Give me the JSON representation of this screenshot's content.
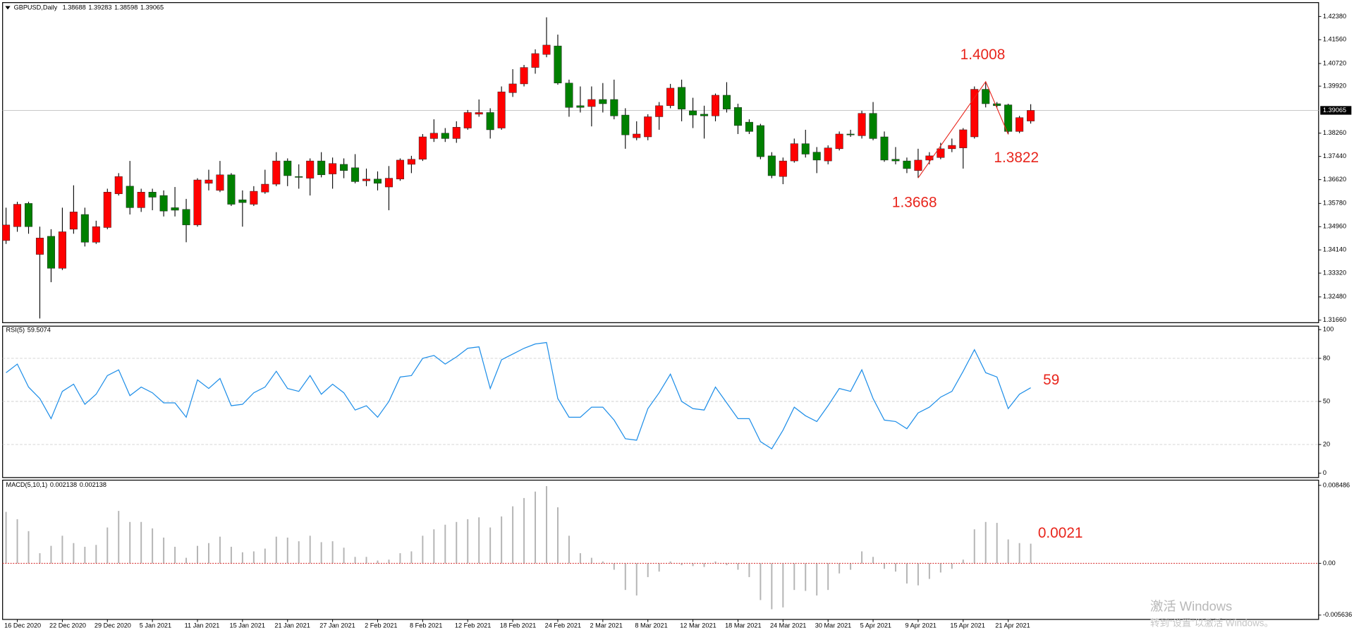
{
  "chart_data": {
    "type": "candlestick",
    "symbol": "GBPUSD,Daily",
    "up_color": "#ff0000",
    "down_color": "#008000",
    "categories": [
      null,
      "16 Dec 2020",
      null,
      null,
      null,
      "22 Dec 2020",
      null,
      null,
      null,
      "29 Dec 2020",
      null,
      null,
      null,
      "5 Jan 2021",
      null,
      null,
      null,
      "11 Jan 2021",
      null,
      null,
      null,
      "15 Jan 2021",
      null,
      null,
      null,
      "21 Jan 2021",
      null,
      null,
      null,
      "27 Jan 2021",
      null,
      null,
      null,
      "2 Feb 2021",
      null,
      null,
      null,
      "8 Feb 2021",
      null,
      null,
      null,
      "12 Feb 2021",
      null,
      null,
      null,
      "18 Feb 2021",
      null,
      null,
      null,
      "24 Feb 2021",
      null,
      null,
      null,
      "2 Mar 2021",
      null,
      null,
      null,
      "8 Mar 2021",
      null,
      null,
      null,
      "12 Mar 2021",
      null,
      null,
      null,
      "18 Mar 2021",
      null,
      null,
      null,
      "24 Mar 2021",
      null,
      null,
      null,
      "30 Mar 2021",
      null,
      null,
      null,
      "5 Apr 2021",
      null,
      null,
      null,
      "9 Apr 2021",
      null,
      null,
      null,
      "15 Apr 2021",
      null,
      null,
      null,
      "21 Apr 2021",
      null,
      null
    ],
    "open": [
      1.3447,
      1.3496,
      1.3578,
      1.3398,
      1.3462,
      1.3349,
      1.3487,
      1.3539,
      1.3441,
      1.3493,
      1.3612,
      1.3639,
      1.3563,
      1.3618,
      1.3606,
      1.3563,
      1.3557,
      1.3502,
      1.3649,
      1.3624,
      1.3679,
      1.3591,
      1.3575,
      1.3618,
      1.3646,
      1.3728,
      1.3673,
      1.3667,
      1.3728,
      1.3682,
      1.3716,
      1.3704,
      1.3658,
      1.3664,
      1.3636,
      1.3664,
      1.3716,
      1.3734,
      1.3807,
      1.3826,
      1.3807,
      1.3844,
      1.3893,
      1.3899,
      1.3844,
      1.3969,
      1.4,
      1.4058,
      1.4104,
      1.4134,
      1.4003,
      1.3923,
      1.392,
      1.3945,
      1.3945,
      1.389,
      1.381,
      1.3813,
      1.3884,
      1.3923,
      1.3988,
      1.3905,
      1.3893,
      1.3887,
      1.396,
      1.3917,
      1.3865,
      1.3853,
      1.3746,
      1.3673,
      1.3728,
      1.3789,
      1.3759,
      1.3728,
      1.3771,
      1.3823,
      1.3817,
      1.3896,
      1.3813,
      1.3734,
      1.3728,
      1.3694,
      1.3731,
      1.374,
      1.3771,
      1.3774,
      1.3813,
      1.3981,
      1.393,
      1.3926,
      1.3832,
      1.38688
    ],
    "high": [
      1.3563,
      1.3584,
      1.3584,
      1.3496,
      1.3487,
      1.3563,
      1.3642,
      1.3563,
      1.3517,
      1.363,
      1.3685,
      1.3728,
      1.363,
      1.363,
      1.3624,
      1.3636,
      1.3594,
      1.3667,
      1.3697,
      1.3728,
      1.3685,
      1.3624,
      1.3639,
      1.3697,
      1.3759,
      1.3737,
      1.3716,
      1.3737,
      1.3759,
      1.374,
      1.3737,
      1.3752,
      1.3701,
      1.3691,
      1.371,
      1.3737,
      1.3746,
      1.3823,
      1.3875,
      1.3844,
      1.3868,
      1.3908,
      1.3945,
      1.3914,
      1.3991,
      1.4052,
      1.4067,
      1.4122,
      1.4235,
      1.4174,
      1.4015,
      1.3991,
      1.3991,
      1.4003,
      1.4015,
      1.3914,
      1.3868,
      1.3893,
      1.3936,
      1.4,
      1.4015,
      1.3951,
      1.3923,
      1.3966,
      1.4006,
      1.393,
      1.3875,
      1.3859,
      1.3759,
      1.374,
      1.3807,
      1.3838,
      1.3777,
      1.3783,
      1.3832,
      1.3838,
      1.3905,
      1.3936,
      1.3832,
      1.3777,
      1.374,
      1.3771,
      1.3759,
      1.3792,
      1.3807,
      1.3844,
      1.3991,
      1.4008,
      1.3936,
      1.393,
      1.3887,
      1.39283
    ],
    "low": [
      1.3435,
      1.3478,
      1.3471,
      1.3172,
      1.33,
      1.3343,
      1.3471,
      1.3426,
      1.3435,
      1.3487,
      1.3606,
      1.3539,
      1.3548,
      1.3554,
      1.3532,
      1.3532,
      1.3441,
      1.3496,
      1.3624,
      1.3618,
      1.3569,
      1.3496,
      1.3569,
      1.3612,
      1.3639,
      1.3639,
      1.363,
      1.3606,
      1.367,
      1.363,
      1.3667,
      1.3649,
      1.3639,
      1.3624,
      1.3554,
      1.3658,
      1.3685,
      1.3728,
      1.3795,
      1.3795,
      1.3792,
      1.3838,
      1.3884,
      1.3807,
      1.3838,
      1.3954,
      1.3991,
      1.4036,
      1.4094,
      1.3997,
      1.3884,
      1.3899,
      1.385,
      1.3899,
      1.3875,
      1.3771,
      1.3801,
      1.3801,
      1.3838,
      1.3914,
      1.3868,
      1.3844,
      1.3807,
      1.3868,
      1.3899,
      1.3823,
      1.3823,
      1.3734,
      1.3667,
      1.3646,
      1.3722,
      1.374,
      1.3685,
      1.3716,
      1.3765,
      1.3813,
      1.3807,
      1.3801,
      1.3725,
      1.3716,
      1.3685,
      1.3668,
      1.3716,
      1.3734,
      1.3759,
      1.3701,
      1.3807,
      1.3917,
      1.3917,
      1.3822,
      1.3826,
      1.38598
    ],
    "close": [
      1.3502,
      1.3575,
      1.3496,
      1.3456,
      1.3349,
      1.3478,
      1.3548,
      1.3441,
      1.3496,
      1.3618,
      1.3673,
      1.3563,
      1.3618,
      1.36,
      1.3551,
      1.3554,
      1.3502,
      1.3661,
      1.3661,
      1.3679,
      1.3575,
      1.3581,
      1.3621,
      1.3646,
      1.3728,
      1.3676,
      1.367,
      1.3728,
      1.3679,
      1.3719,
      1.3694,
      1.3655,
      1.3664,
      1.3649,
      1.3667,
      1.3731,
      1.3734,
      1.3813,
      1.3826,
      1.3807,
      1.3847,
      1.3899,
      1.3899,
      1.3838,
      1.3972,
      1.4,
      1.4058,
      1.4107,
      1.4137,
      1.4003,
      1.3917,
      1.3917,
      1.3945,
      1.393,
      1.3887,
      1.382,
      1.3823,
      1.3884,
      1.3923,
      1.3985,
      1.3911,
      1.389,
      1.3887,
      1.396,
      1.3911,
      1.3853,
      1.3832,
      1.3743,
      1.3676,
      1.3728,
      1.3789,
      1.3752,
      1.3731,
      1.3774,
      1.3823,
      1.382,
      1.3896,
      1.3807,
      1.3731,
      1.3728,
      1.3701,
      1.3731,
      1.3746,
      1.3771,
      1.3783,
      1.3838,
      1.3981,
      1.393,
      1.3923,
      1.3832,
      1.3881,
      1.39065
    ],
    "ylim": [
      1.3157,
      1.4287
    ],
    "yticks": [
      {
        "value": 1.4238,
        "label": "1.42380"
      },
      {
        "value": 1.4156,
        "label": "1.41560"
      },
      {
        "value": 1.4072,
        "label": "1.40720"
      },
      {
        "value": 1.3992,
        "label": "1.39920"
      },
      {
        "value": 1.3826,
        "label": "1.38260"
      },
      {
        "value": 1.3744,
        "label": "1.37440"
      },
      {
        "value": 1.3662,
        "label": "1.36620"
      },
      {
        "value": 1.3578,
        "label": "1.35780"
      },
      {
        "value": 1.3496,
        "label": "1.34960"
      },
      {
        "value": 1.3414,
        "label": "1.34140"
      },
      {
        "value": 1.3332,
        "label": "1.33320"
      },
      {
        "value": 1.3248,
        "label": "1.32480"
      },
      {
        "value": 1.3166,
        "label": "1.31660"
      }
    ],
    "annotations": [
      "59",
      "0.0021"
    ],
    "rsi": {
      "label": "RSI(5)",
      "color": "#1e8ee8",
      "values": [
        70,
        76,
        60,
        52,
        38,
        57,
        62,
        48,
        55,
        68,
        72,
        54,
        60,
        56,
        49,
        49,
        39,
        65,
        59,
        66,
        47,
        48,
        56,
        60,
        71,
        59,
        57,
        68,
        55,
        62,
        56,
        44,
        47,
        39,
        50,
        67,
        68,
        80,
        82,
        76,
        81,
        87,
        88,
        59,
        79,
        83,
        87,
        90,
        91,
        52,
        39,
        39,
        46,
        46,
        37,
        24,
        23,
        45,
        56,
        69,
        50,
        45,
        44,
        60,
        49,
        38,
        38,
        22,
        17,
        30,
        46,
        40,
        36,
        47,
        59,
        57,
        72,
        52,
        37,
        36,
        31,
        42,
        46,
        53,
        57,
        71,
        86,
        70,
        67,
        45,
        55,
        59.5074
      ],
      "ylim": [
        0,
        100
      ],
      "yticks": [
        0,
        20,
        50,
        80,
        100
      ]
    },
    "macd": {
      "label": "MACD(5,10,1)",
      "color": "#b4b4b4",
      "zero_color": "#d83030",
      "values": [
        0.0056,
        0.0048,
        0.0035,
        0.0011,
        0.0019,
        0.003,
        0.0022,
        0.0018,
        0.002,
        0.0039,
        0.0057,
        0.0045,
        0.0045,
        0.0038,
        0.0028,
        0.0018,
        0.0006,
        0.0019,
        0.0022,
        0.0029,
        0.0018,
        0.0012,
        0.0013,
        0.0016,
        0.0029,
        0.0028,
        0.0024,
        0.003,
        0.0023,
        0.0024,
        0.0017,
        0.0007,
        0.0007,
        0.0003,
        0.0004,
        0.0011,
        0.0013,
        0.003,
        0.0037,
        0.0042,
        0.0045,
        0.0048,
        0.005,
        0.0039,
        0.0051,
        0.0062,
        0.0071,
        0.0078,
        0.0084,
        0.0061,
        0.003,
        0.0011,
        0.0006,
        0.0002,
        -0.0007,
        -0.0029,
        -0.0035,
        -0.0015,
        -0.0009,
        0.0002,
        -0.0002,
        -0.0003,
        -0.0004,
        0.0002,
        -0.0002,
        -0.0007,
        -0.0015,
        -0.004,
        -0.005,
        -0.0048,
        -0.0029,
        -0.003,
        -0.0035,
        -0.0029,
        -0.0011,
        -0.0007,
        0.0013,
        0.0007,
        -0.0006,
        -0.0009,
        -0.0022,
        -0.0024,
        -0.0017,
        -0.001,
        -0.0006,
        0.0004,
        0.0037,
        0.0045,
        0.0044,
        0.0026,
        0.0022,
        0.002138
      ],
      "ylim": [
        -0.005636,
        0.008486
      ],
      "yticks": [
        -0.005636,
        {
          "value": 0,
          "label": "0.00"
        },
        0.008486
      ]
    },
    "watermark": [
      "激活 Windows",
      "转到“设置”以激活 Windows。"
    ]
  }
}
